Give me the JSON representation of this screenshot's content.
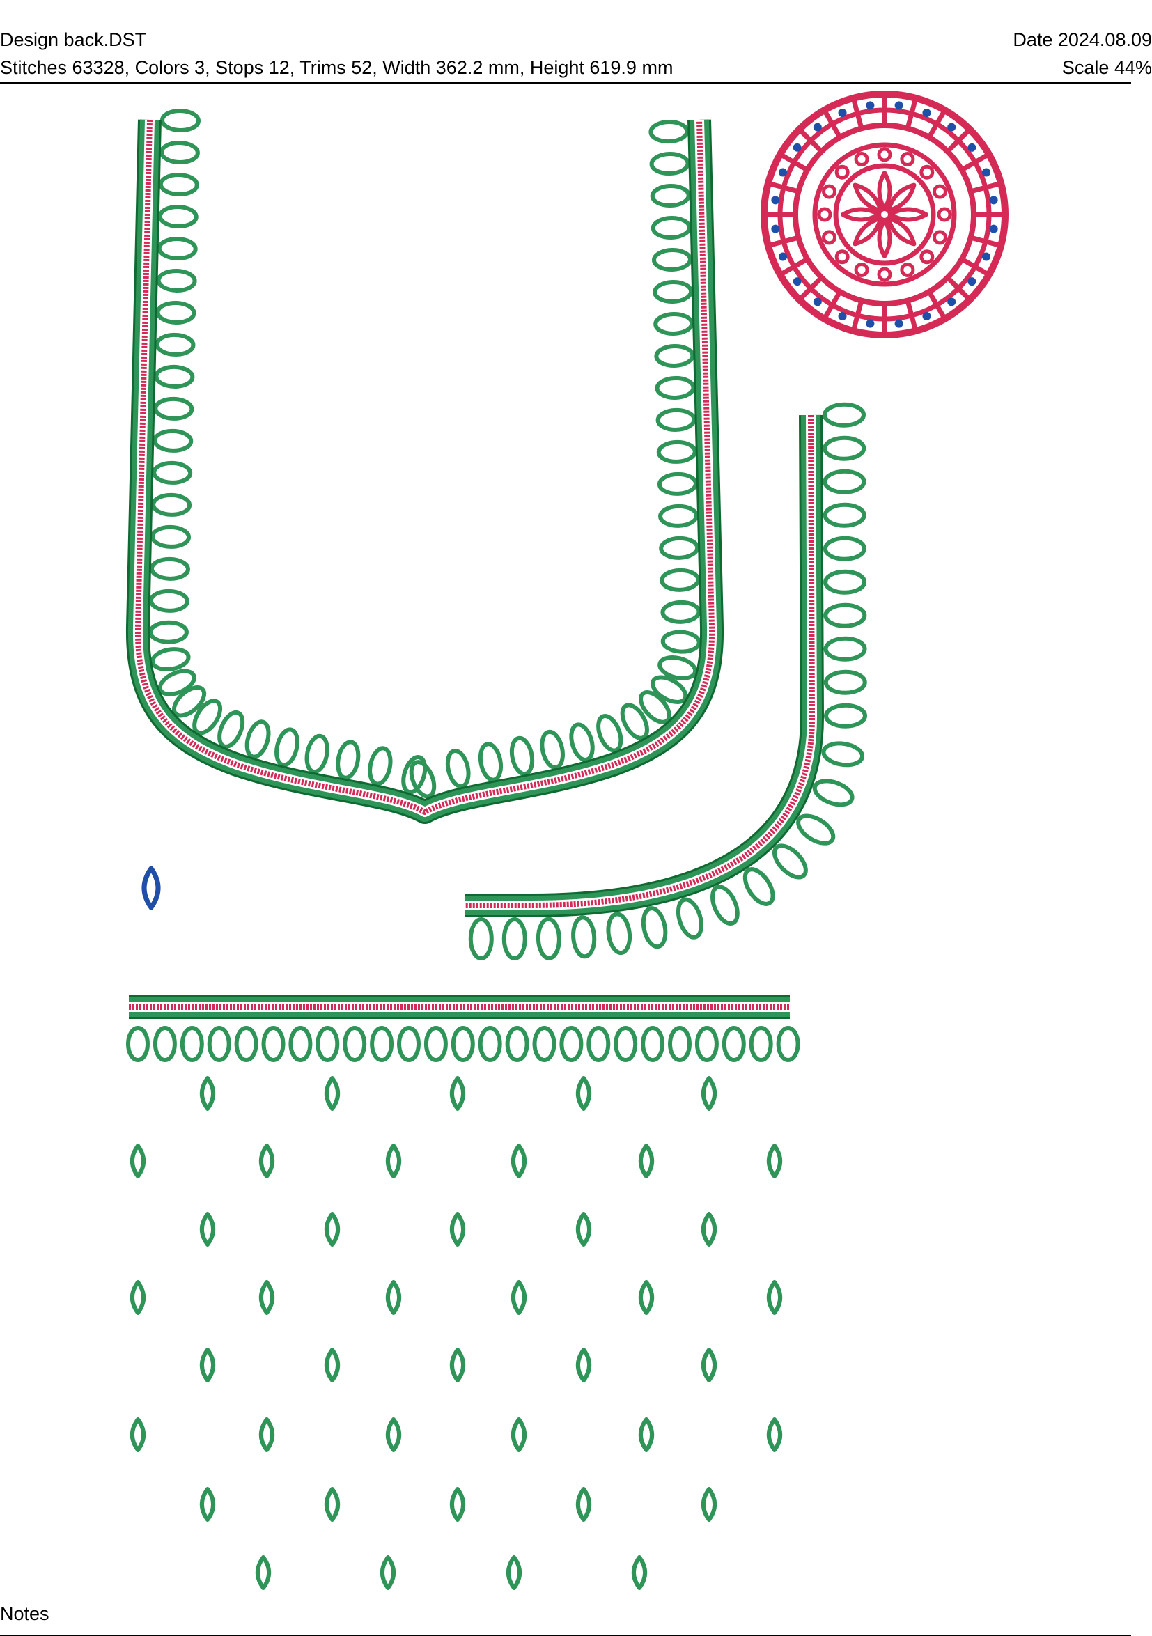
{
  "header": {
    "filename": "Design back.DST",
    "date": "Date 2024.08.09",
    "stats": "Stitches 63328, Colors 3, Stops 12, Trims 52, Width 362.2 mm, Height 619.9 mm",
    "scale": "Scale 44%"
  },
  "footer": {
    "notes_label": "Notes"
  },
  "thread_colors": {
    "green": "#2e9457",
    "green_dark": "#0f6a32",
    "red": "#d42a55",
    "blue": "#1f4fa8"
  }
}
